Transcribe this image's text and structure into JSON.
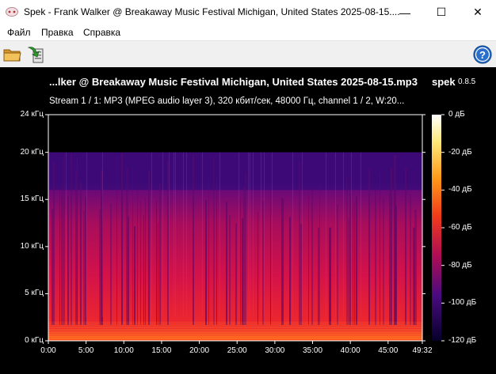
{
  "window": {
    "title": "Spek - Frank Walker @ Breakaway Music Festival Michigan, United States 2025-08-15....",
    "minimize_glyph": "—",
    "maximize_glyph": "☐",
    "close_glyph": "✕"
  },
  "menu": {
    "items": [
      {
        "label": "Файл"
      },
      {
        "label": "Правка"
      },
      {
        "label": "Справка"
      }
    ]
  },
  "toolbar": {
    "open_icon": "folder-open-icon",
    "save_icon": "save-arrow-icon",
    "help_icon": "help-icon",
    "help_glyph": "?"
  },
  "spectrogram": {
    "file_title": "...lker @ Breakaway Music Festival Michigan, United States 2025-08-15.mp3",
    "app_name": "spek",
    "app_version": "0.8.5",
    "stream_info": "Stream 1 / 1: MP3 (MPEG audio layer 3), 320 кбит/сек, 48000 Гц, channel 1 / 2, W:20...",
    "freq_labels": [
      "24 кГц",
      "20 кГц",
      "15 кГц",
      "10 кГц",
      "5 кГц",
      "0 кГц"
    ],
    "freq_values_khz": [
      24,
      20,
      15,
      10,
      5,
      0
    ],
    "time_labels": [
      "0:00",
      "5:00",
      "10:00",
      "15:00",
      "20:00",
      "25:00",
      "30:00",
      "35:00",
      "40:00",
      "45:00",
      "49:32"
    ],
    "time_values_sec": [
      0,
      300,
      600,
      900,
      1200,
      1500,
      1800,
      2100,
      2400,
      2700,
      2972
    ],
    "db_labels": [
      "0 дБ",
      "-20 дБ",
      "-40 дБ",
      "-60 дБ",
      "-80 дБ",
      "-100 дБ",
      "-120 дБ"
    ],
    "db_values": [
      0,
      -20,
      -40,
      -60,
      -80,
      -100,
      -120
    ],
    "duration_sec": 2972,
    "max_freq_khz": 24,
    "cutoff_khz": 20,
    "colors": {
      "background": "#000000",
      "low": "#1a0033",
      "mid": "#c0104a",
      "high": "#ff3a10",
      "peak": "#ffffff"
    }
  }
}
